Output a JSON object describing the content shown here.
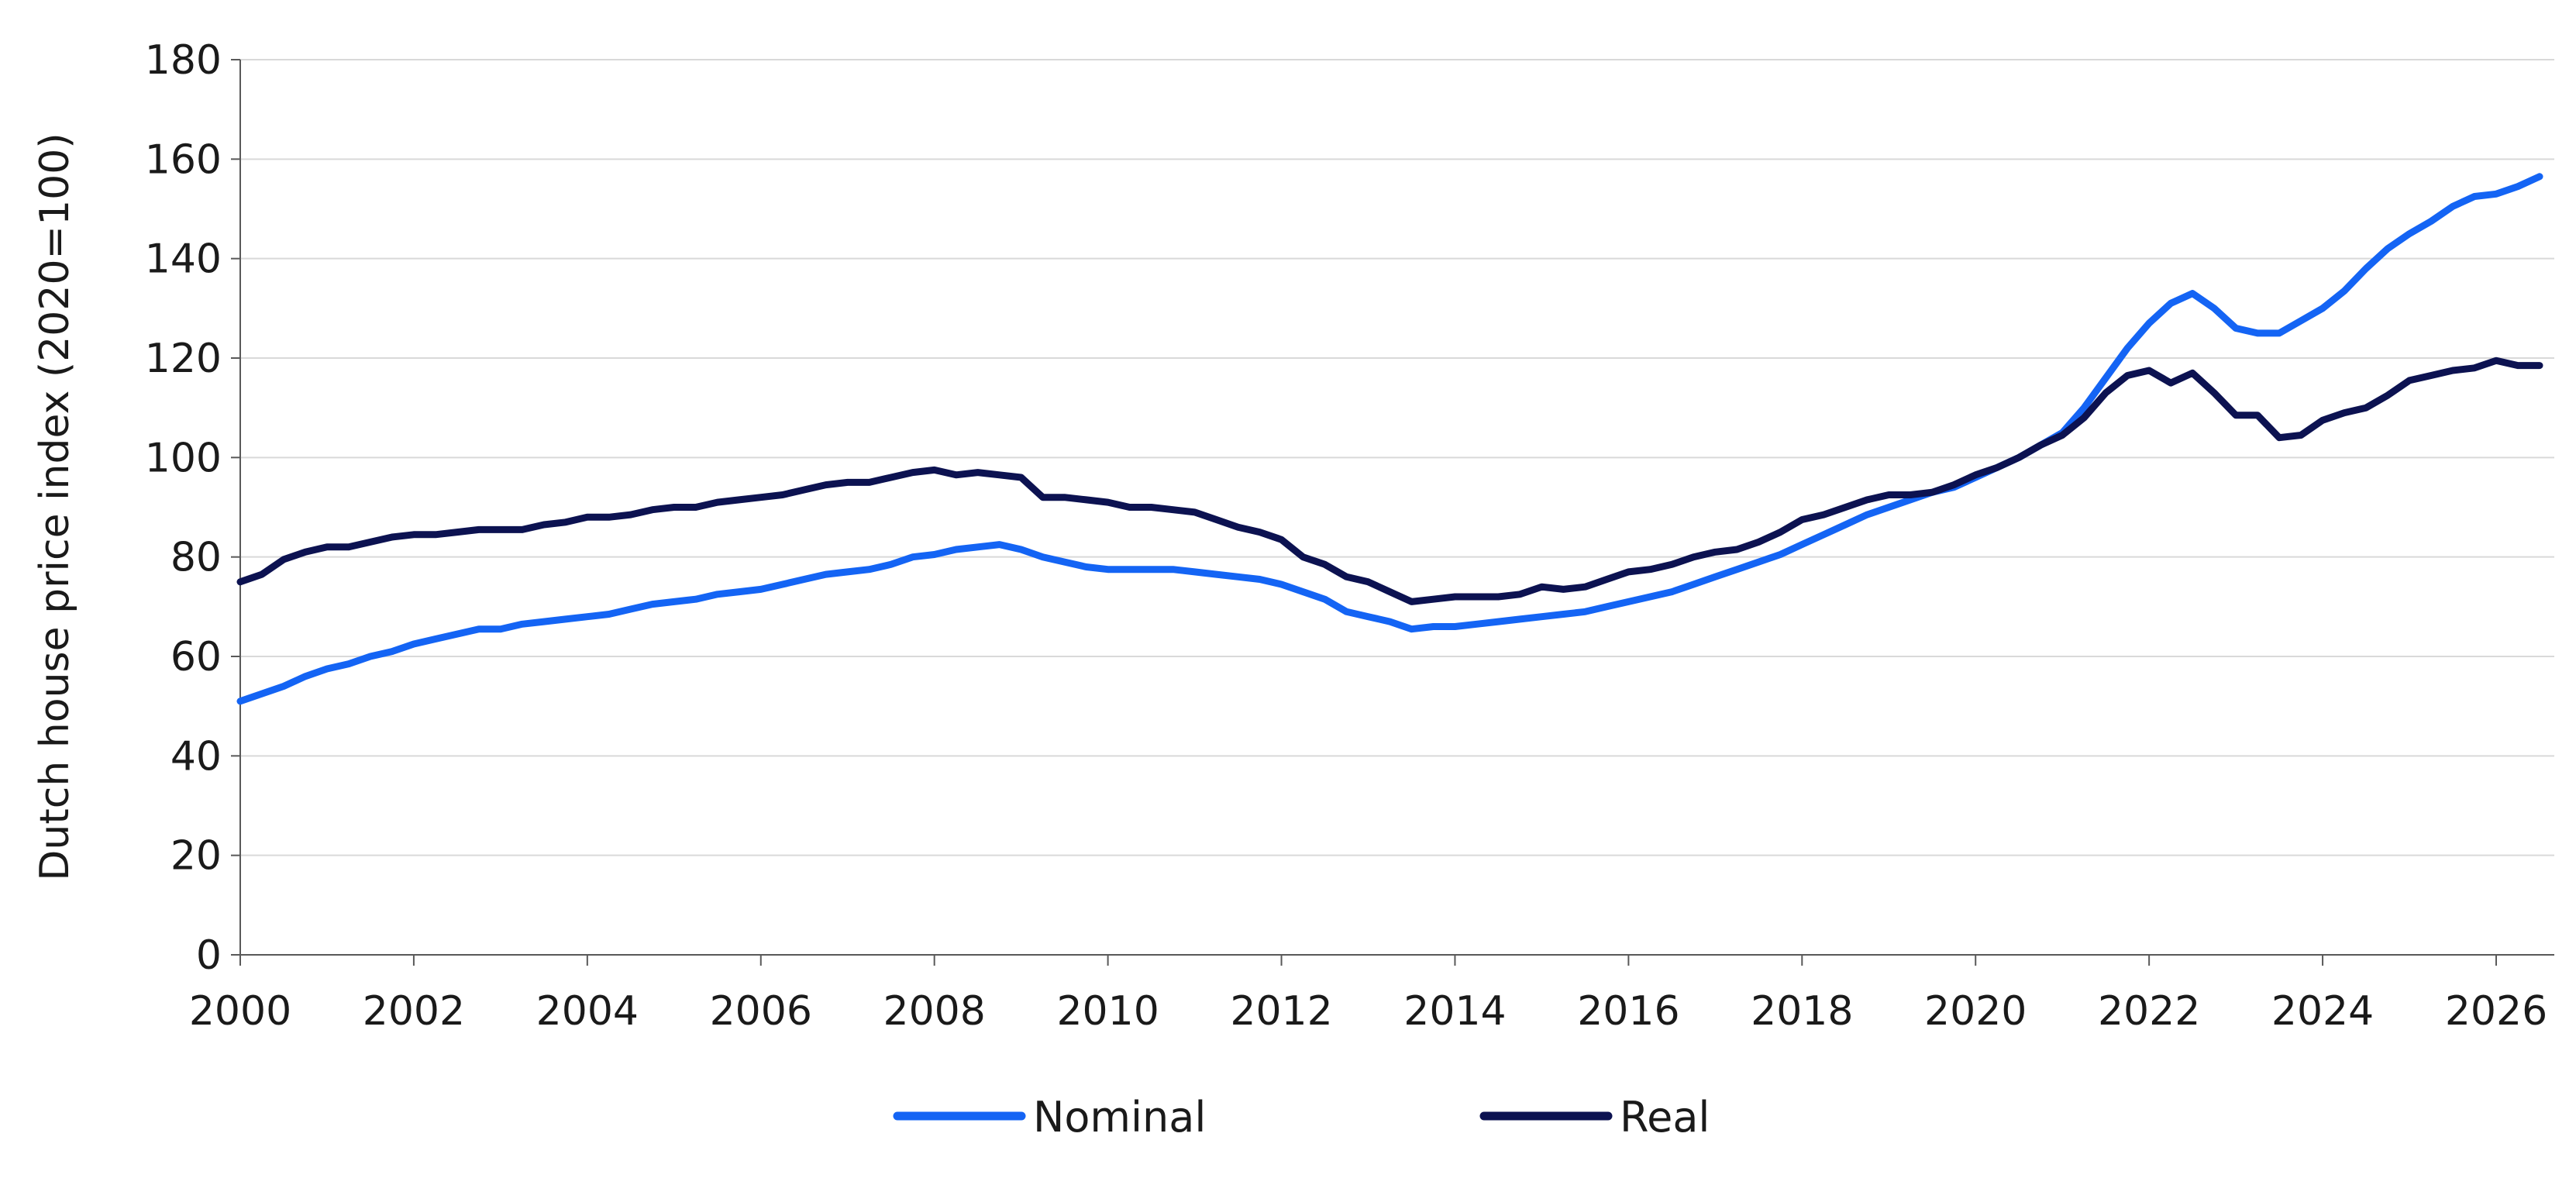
{
  "chart_data": {
    "type": "line",
    "title": "",
    "xlabel": "",
    "ylabel": "Dutch house price index (2020=100)",
    "xlim": [
      2000,
      2026.67
    ],
    "ylim": [
      0,
      180
    ],
    "x_ticks": [
      2000,
      2002,
      2004,
      2006,
      2008,
      2010,
      2012,
      2014,
      2016,
      2018,
      2020,
      2022,
      2024,
      2026
    ],
    "x_tick_labels": [
      "2000",
      "2002",
      "2004",
      "2006",
      "2008",
      "2010",
      "2012",
      "2014",
      "2016",
      "2018",
      "2020",
      "2022",
      "2024",
      "2026"
    ],
    "y_ticks": [
      0,
      20,
      40,
      60,
      80,
      100,
      120,
      140,
      160,
      180
    ],
    "y_tick_labels": [
      "0",
      "20",
      "40",
      "60",
      "80",
      "100",
      "120",
      "140",
      "160",
      "180"
    ],
    "grid": "horizontal",
    "legend_position": "bottom-center",
    "series": [
      {
        "name": "Nominal",
        "color": "#1464f4",
        "points": [
          [
            2000.0,
            51
          ],
          [
            2000.25,
            52.5
          ],
          [
            2000.5,
            54
          ],
          [
            2000.75,
            56
          ],
          [
            2001.0,
            57.5
          ],
          [
            2001.25,
            58.5
          ],
          [
            2001.5,
            60
          ],
          [
            2001.75,
            61
          ],
          [
            2002.0,
            62.5
          ],
          [
            2002.25,
            63.5
          ],
          [
            2002.5,
            64.5
          ],
          [
            2002.75,
            65.5
          ],
          [
            2003.0,
            65.5
          ],
          [
            2003.25,
            66.5
          ],
          [
            2003.5,
            67
          ],
          [
            2003.75,
            67.5
          ],
          [
            2004.0,
            68
          ],
          [
            2004.25,
            68.5
          ],
          [
            2004.5,
            69.5
          ],
          [
            2004.75,
            70.5
          ],
          [
            2005.0,
            71
          ],
          [
            2005.25,
            71.5
          ],
          [
            2005.5,
            72.5
          ],
          [
            2005.75,
            73
          ],
          [
            2006.0,
            73.5
          ],
          [
            2006.25,
            74.5
          ],
          [
            2006.5,
            75.5
          ],
          [
            2006.75,
            76.5
          ],
          [
            2007.0,
            77
          ],
          [
            2007.25,
            77.5
          ],
          [
            2007.5,
            78.5
          ],
          [
            2007.75,
            80
          ],
          [
            2008.0,
            80.5
          ],
          [
            2008.25,
            81.5
          ],
          [
            2008.5,
            82
          ],
          [
            2008.75,
            82.5
          ],
          [
            2009.0,
            81.5
          ],
          [
            2009.25,
            80
          ],
          [
            2009.5,
            79
          ],
          [
            2009.75,
            78
          ],
          [
            2010.0,
            77.5
          ],
          [
            2010.25,
            77.5
          ],
          [
            2010.5,
            77.5
          ],
          [
            2010.75,
            77.5
          ],
          [
            2011.0,
            77
          ],
          [
            2011.25,
            76.5
          ],
          [
            2011.5,
            76
          ],
          [
            2011.75,
            75.5
          ],
          [
            2012.0,
            74.5
          ],
          [
            2012.25,
            73
          ],
          [
            2012.5,
            71.5
          ],
          [
            2012.75,
            69
          ],
          [
            2013.0,
            68
          ],
          [
            2013.25,
            67
          ],
          [
            2013.5,
            65.5
          ],
          [
            2013.75,
            66
          ],
          [
            2014.0,
            66
          ],
          [
            2014.25,
            66.5
          ],
          [
            2014.5,
            67
          ],
          [
            2014.75,
            67.5
          ],
          [
            2015.0,
            68
          ],
          [
            2015.25,
            68.5
          ],
          [
            2015.5,
            69
          ],
          [
            2015.75,
            70
          ],
          [
            2016.0,
            71
          ],
          [
            2016.25,
            72
          ],
          [
            2016.5,
            73
          ],
          [
            2016.75,
            74.5
          ],
          [
            2017.0,
            76
          ],
          [
            2017.25,
            77.5
          ],
          [
            2017.5,
            79
          ],
          [
            2017.75,
            80.5
          ],
          [
            2018.0,
            82.5
          ],
          [
            2018.25,
            84.5
          ],
          [
            2018.5,
            86.5
          ],
          [
            2018.75,
            88.5
          ],
          [
            2019.0,
            90
          ],
          [
            2019.25,
            91.5
          ],
          [
            2019.5,
            93
          ],
          [
            2019.75,
            94
          ],
          [
            2020.0,
            96
          ],
          [
            2020.25,
            98
          ],
          [
            2020.5,
            100
          ],
          [
            2020.75,
            102.5
          ],
          [
            2021.0,
            105
          ],
          [
            2021.25,
            110
          ],
          [
            2021.5,
            116
          ],
          [
            2021.75,
            122
          ],
          [
            2022.0,
            127
          ],
          [
            2022.25,
            131
          ],
          [
            2022.5,
            133
          ],
          [
            2022.75,
            130
          ],
          [
            2023.0,
            126
          ],
          [
            2023.25,
            125
          ],
          [
            2023.5,
            125
          ],
          [
            2023.75,
            127.5
          ],
          [
            2024.0,
            130
          ],
          [
            2024.25,
            133.5
          ],
          [
            2024.5,
            138
          ],
          [
            2024.75,
            142
          ],
          [
            2025.0,
            145
          ],
          [
            2025.25,
            147.5
          ],
          [
            2025.5,
            150.5
          ],
          [
            2025.75,
            152.5
          ],
          [
            2026.0,
            153
          ],
          [
            2026.25,
            154.5
          ],
          [
            2026.5,
            156.5
          ]
        ]
      },
      {
        "name": "Real",
        "color": "#0c1251",
        "points": [
          [
            2000.0,
            75
          ],
          [
            2000.25,
            76.5
          ],
          [
            2000.5,
            79.5
          ],
          [
            2000.75,
            81
          ],
          [
            2001.0,
            82
          ],
          [
            2001.25,
            82
          ],
          [
            2001.5,
            83
          ],
          [
            2001.75,
            84
          ],
          [
            2002.0,
            84.5
          ],
          [
            2002.25,
            84.5
          ],
          [
            2002.5,
            85
          ],
          [
            2002.75,
            85.5
          ],
          [
            2003.0,
            85.5
          ],
          [
            2003.25,
            85.5
          ],
          [
            2003.5,
            86.5
          ],
          [
            2003.75,
            87
          ],
          [
            2004.0,
            88
          ],
          [
            2004.25,
            88
          ],
          [
            2004.5,
            88.5
          ],
          [
            2004.75,
            89.5
          ],
          [
            2005.0,
            90
          ],
          [
            2005.25,
            90
          ],
          [
            2005.5,
            91
          ],
          [
            2005.75,
            91.5
          ],
          [
            2006.0,
            92
          ],
          [
            2006.25,
            92.5
          ],
          [
            2006.5,
            93.5
          ],
          [
            2006.75,
            94.5
          ],
          [
            2007.0,
            95
          ],
          [
            2007.25,
            95
          ],
          [
            2007.5,
            96
          ],
          [
            2007.75,
            97
          ],
          [
            2008.0,
            97.5
          ],
          [
            2008.25,
            96.5
          ],
          [
            2008.5,
            97
          ],
          [
            2008.75,
            96.5
          ],
          [
            2009.0,
            96
          ],
          [
            2009.25,
            92
          ],
          [
            2009.5,
            92
          ],
          [
            2009.75,
            91.5
          ],
          [
            2010.0,
            91
          ],
          [
            2010.25,
            90
          ],
          [
            2010.5,
            90
          ],
          [
            2010.75,
            89.5
          ],
          [
            2011.0,
            89
          ],
          [
            2011.25,
            87.5
          ],
          [
            2011.5,
            86
          ],
          [
            2011.75,
            85
          ],
          [
            2012.0,
            83.5
          ],
          [
            2012.25,
            80
          ],
          [
            2012.5,
            78.5
          ],
          [
            2012.75,
            76
          ],
          [
            2013.0,
            75
          ],
          [
            2013.25,
            73
          ],
          [
            2013.5,
            71
          ],
          [
            2013.75,
            71.5
          ],
          [
            2014.0,
            72
          ],
          [
            2014.25,
            72
          ],
          [
            2014.5,
            72
          ],
          [
            2014.75,
            72.5
          ],
          [
            2015.0,
            74
          ],
          [
            2015.25,
            73.5
          ],
          [
            2015.5,
            74
          ],
          [
            2015.75,
            75.5
          ],
          [
            2016.0,
            77
          ],
          [
            2016.25,
            77.5
          ],
          [
            2016.5,
            78.5
          ],
          [
            2016.75,
            80
          ],
          [
            2017.0,
            81
          ],
          [
            2017.25,
            81.5
          ],
          [
            2017.5,
            83
          ],
          [
            2017.75,
            85
          ],
          [
            2018.0,
            87.5
          ],
          [
            2018.25,
            88.5
          ],
          [
            2018.5,
            90
          ],
          [
            2018.75,
            91.5
          ],
          [
            2019.0,
            92.5
          ],
          [
            2019.25,
            92.5
          ],
          [
            2019.5,
            93
          ],
          [
            2019.75,
            94.5
          ],
          [
            2020.0,
            96.5
          ],
          [
            2020.25,
            98
          ],
          [
            2020.5,
            100
          ],
          [
            2020.75,
            102.5
          ],
          [
            2021.0,
            104.5
          ],
          [
            2021.25,
            108
          ],
          [
            2021.5,
            113
          ],
          [
            2021.75,
            116.5
          ],
          [
            2022.0,
            117.5
          ],
          [
            2022.25,
            115
          ],
          [
            2022.5,
            117
          ],
          [
            2022.75,
            113
          ],
          [
            2023.0,
            108.5
          ],
          [
            2023.25,
            108.5
          ],
          [
            2023.5,
            104
          ],
          [
            2023.75,
            104.5
          ],
          [
            2024.0,
            107.5
          ],
          [
            2024.25,
            109
          ],
          [
            2024.5,
            110
          ],
          [
            2024.75,
            112.5
          ],
          [
            2025.0,
            115.5
          ],
          [
            2025.25,
            116.5
          ],
          [
            2025.5,
            117.5
          ],
          [
            2025.75,
            118
          ],
          [
            2026.0,
            119.5
          ],
          [
            2026.25,
            118.5
          ],
          [
            2026.5,
            118.5
          ]
        ]
      }
    ]
  }
}
